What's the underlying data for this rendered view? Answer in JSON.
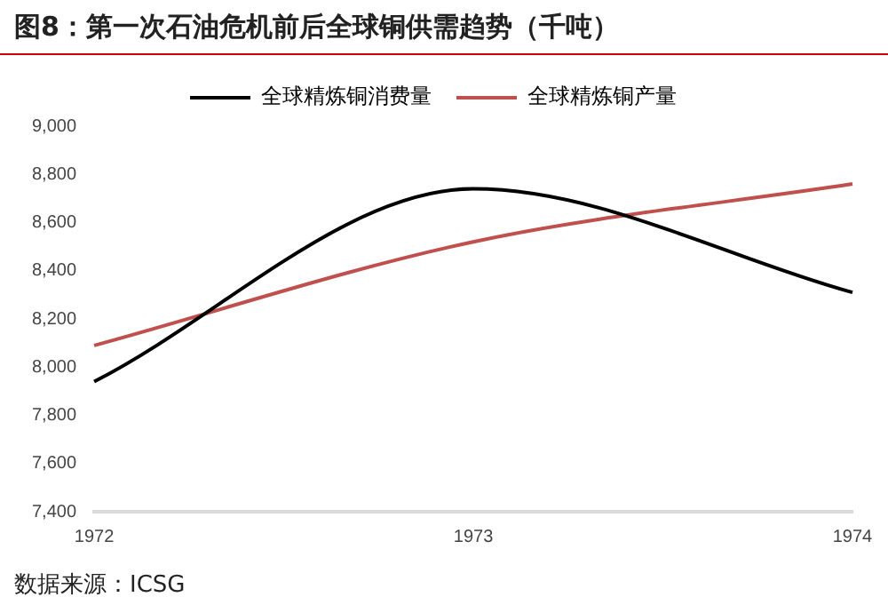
{
  "chart_data": {
    "type": "line",
    "title": "图8：第一次石油危机前后全球铜供需趋势（千吨）",
    "categories": [
      "1972",
      "1973",
      "1974"
    ],
    "series": [
      {
        "name": "全球精炼铜消费量",
        "color": "#000000",
        "values": [
          7940,
          8740,
          8310
        ]
      },
      {
        "name": "全球精炼铜产量",
        "color": "#c0504d",
        "values": [
          8090,
          8520,
          8760
        ]
      }
    ],
    "ylim": [
      7400,
      9000
    ],
    "yticks": [
      {
        "value": 7400,
        "label": "7,400"
      },
      {
        "value": 7600,
        "label": "7,600"
      },
      {
        "value": 7800,
        "label": "7,800"
      },
      {
        "value": 8000,
        "label": "8,000"
      },
      {
        "value": 8200,
        "label": "8,200"
      },
      {
        "value": 8400,
        "label": "8,400"
      },
      {
        "value": 8600,
        "label": "8,600"
      },
      {
        "value": 8800,
        "label": "8,800"
      },
      {
        "value": 9000,
        "label": "9,000"
      }
    ],
    "grid": false,
    "legend": "top",
    "marker": "none",
    "line_style": "solid",
    "annotations": [
      "数据来源：ICSG"
    ]
  }
}
